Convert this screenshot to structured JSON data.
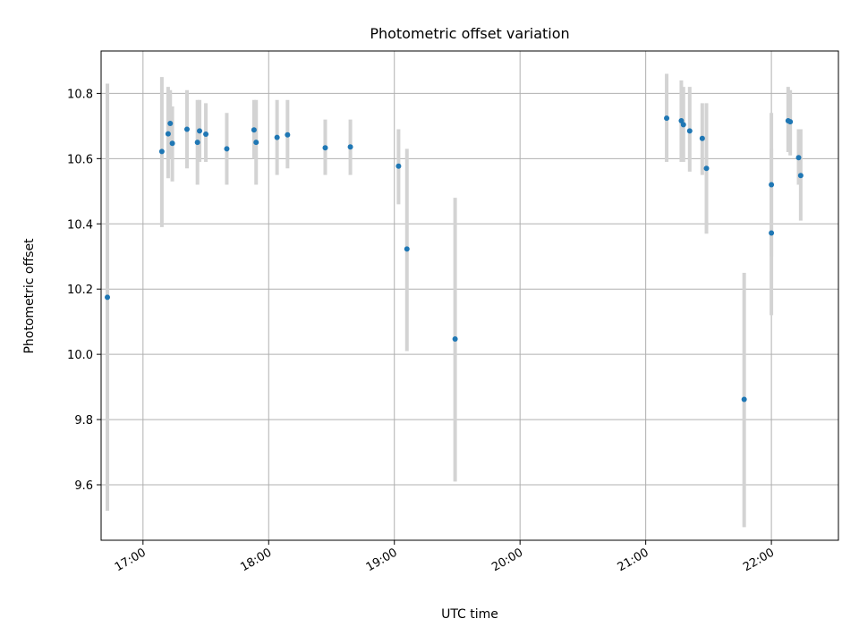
{
  "chart_data": {
    "type": "scatter",
    "title": "Photometric offset variation",
    "xlabel": "UTC time",
    "ylabel": "Photometric offset",
    "x_type": "time",
    "xlim": [
      "16:40",
      "22:32"
    ],
    "ylim": [
      9.43,
      10.93
    ],
    "grid": true,
    "x_ticks": [
      "17:00",
      "18:00",
      "19:00",
      "20:00",
      "21:00",
      "22:00"
    ],
    "y_ticks": [
      "9.6",
      "9.8",
      "10.0",
      "10.2",
      "10.4",
      "10.6",
      "10.8"
    ],
    "marker_color": "#1f77b4",
    "errorbar_color": "#d3d3d3",
    "series": [
      {
        "points": [
          {
            "x": "16:43",
            "y": 10.175,
            "lo": 9.52,
            "hi": 10.83
          },
          {
            "x": "17:09",
            "y": 10.622,
            "lo": 10.39,
            "hi": 10.85
          },
          {
            "x": "17:12",
            "y": 10.676,
            "lo": 10.54,
            "hi": 10.82
          },
          {
            "x": "17:13",
            "y": 10.708,
            "lo": 10.6,
            "hi": 10.81
          },
          {
            "x": "17:14",
            "y": 10.647,
            "lo": 10.53,
            "hi": 10.76
          },
          {
            "x": "17:21",
            "y": 10.69,
            "lo": 10.57,
            "hi": 10.81
          },
          {
            "x": "17:26",
            "y": 10.65,
            "lo": 10.52,
            "hi": 10.78
          },
          {
            "x": "17:27",
            "y": 10.685,
            "lo": 10.59,
            "hi": 10.78
          },
          {
            "x": "17:30",
            "y": 10.675,
            "lo": 10.59,
            "hi": 10.77
          },
          {
            "x": "17:40",
            "y": 10.63,
            "lo": 10.52,
            "hi": 10.74
          },
          {
            "x": "17:53",
            "y": 10.688,
            "lo": 10.6,
            "hi": 10.78
          },
          {
            "x": "17:54",
            "y": 10.65,
            "lo": 10.52,
            "hi": 10.78
          },
          {
            "x": "18:04",
            "y": 10.665,
            "lo": 10.55,
            "hi": 10.78
          },
          {
            "x": "18:09",
            "y": 10.673,
            "lo": 10.57,
            "hi": 10.78
          },
          {
            "x": "18:27",
            "y": 10.633,
            "lo": 10.55,
            "hi": 10.72
          },
          {
            "x": "18:39",
            "y": 10.636,
            "lo": 10.55,
            "hi": 10.72
          },
          {
            "x": "19:02",
            "y": 10.577,
            "lo": 10.46,
            "hi": 10.69
          },
          {
            "x": "19:06",
            "y": 10.323,
            "lo": 10.01,
            "hi": 10.63
          },
          {
            "x": "19:29",
            "y": 10.047,
            "lo": 9.61,
            "hi": 10.48
          },
          {
            "x": "21:10",
            "y": 10.724,
            "lo": 10.59,
            "hi": 10.86
          },
          {
            "x": "21:17",
            "y": 10.716,
            "lo": 10.59,
            "hi": 10.84
          },
          {
            "x": "21:18",
            "y": 10.704,
            "lo": 10.59,
            "hi": 10.82
          },
          {
            "x": "21:21",
            "y": 10.685,
            "lo": 10.56,
            "hi": 10.82
          },
          {
            "x": "21:27",
            "y": 10.662,
            "lo": 10.55,
            "hi": 10.77
          },
          {
            "x": "21:29",
            "y": 10.57,
            "lo": 10.37,
            "hi": 10.77
          },
          {
            "x": "21:47",
            "y": 9.862,
            "lo": 9.47,
            "hi": 10.25
          },
          {
            "x": "22:00",
            "y": 10.52,
            "lo": 10.3,
            "hi": 10.74
          },
          {
            "x": "22:00",
            "y": 10.372,
            "lo": 10.12,
            "hi": 10.63
          },
          {
            "x": "22:08",
            "y": 10.716,
            "lo": 10.62,
            "hi": 10.82
          },
          {
            "x": "22:09",
            "y": 10.713,
            "lo": 10.61,
            "hi": 10.81
          },
          {
            "x": "22:13",
            "y": 10.603,
            "lo": 10.52,
            "hi": 10.69
          },
          {
            "x": "22:14",
            "y": 10.548,
            "lo": 10.41,
            "hi": 10.69
          }
        ]
      }
    ]
  }
}
